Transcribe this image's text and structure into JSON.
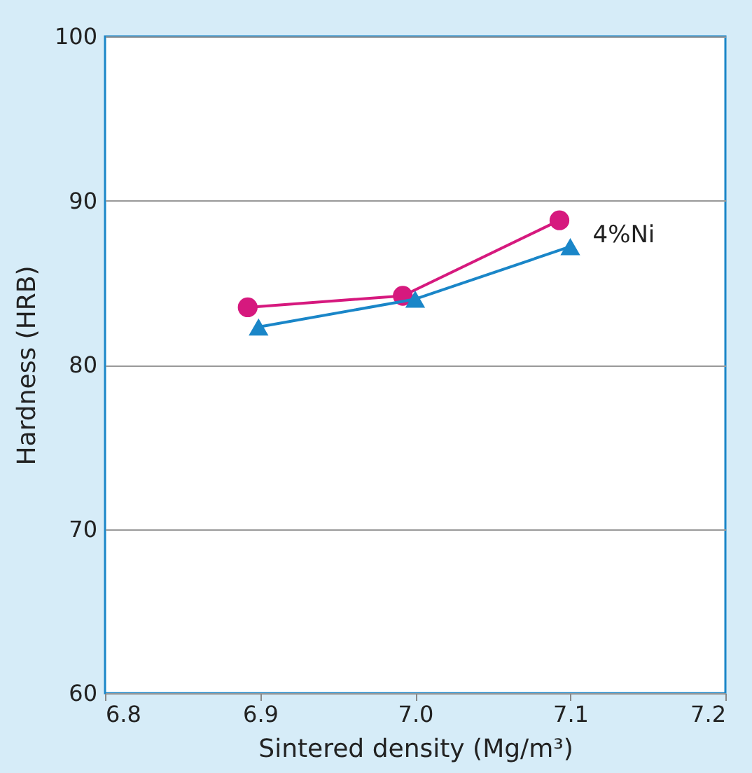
{
  "chart_data": {
    "type": "line",
    "xlabel": "Sintered density (Mg/m³)",
    "ylabel": "Hardness (HRB)",
    "xlim": [
      6.8,
      7.2
    ],
    "xticks": [
      {
        "value": 6.8,
        "label": "6.8"
      },
      {
        "value": 6.9,
        "label": "6.9"
      },
      {
        "value": 7.0,
        "label": "7.0"
      },
      {
        "value": 7.1,
        "label": "7.1"
      },
      {
        "value": 7.2,
        "label": "7.2"
      }
    ],
    "ylim": [
      60,
      100
    ],
    "yticks": [
      60,
      70,
      80,
      90,
      100
    ],
    "grid": "y",
    "line_style": "solid",
    "series": [
      {
        "color": "#d6197e",
        "marker": "circle",
        "x": [
          6.892,
          6.992,
          7.093
        ],
        "values": [
          83.5,
          84.2,
          88.8
        ]
      },
      {
        "name": "4%Ni",
        "color": "#1a86c8",
        "marker": "triangle",
        "x": [
          6.899,
          7.0,
          7.1
        ],
        "values": [
          82.3,
          84.0,
          87.2
        ]
      }
    ]
  }
}
